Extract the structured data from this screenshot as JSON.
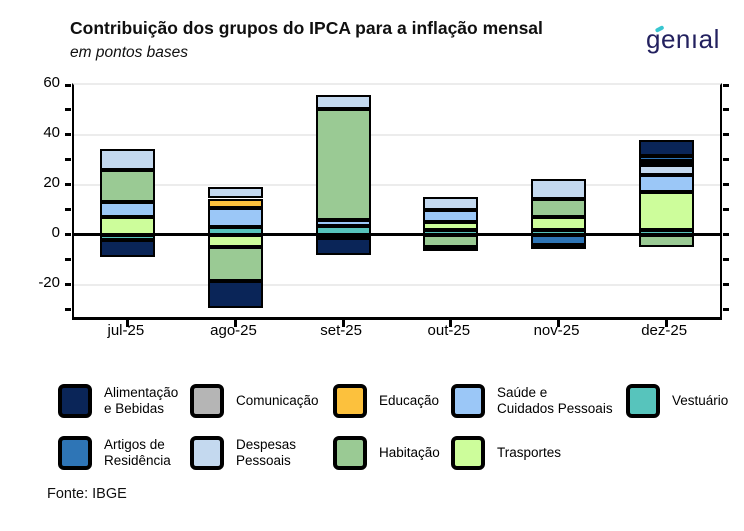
{
  "title": "Contribuição dos grupos do IPCA para a inflação mensal",
  "subtitle": "em pontos bases",
  "logo_text": "genıal",
  "source": "Fonte: IBGE",
  "chart_data": {
    "type": "bar",
    "variant": "stacked",
    "title": "Contribuição dos grupos do IPCA para a inflação mensal",
    "subtitle": "em pontos bases",
    "unit": "pontos bases",
    "categories": [
      "jul-25",
      "ago-25",
      "set-25",
      "out-25",
      "nov-25",
      "dez-25"
    ],
    "y_axis": {
      "tick_labels": [
        "60",
        "40",
        "20",
        "0",
        "-20"
      ],
      "tick_values": [
        60,
        40,
        20,
        0,
        -20
      ],
      "minor_tick_values": [
        60,
        50,
        40,
        30,
        20,
        10,
        0,
        -10,
        -20,
        -30
      ],
      "range": [
        -33,
        60
      ],
      "gridline_values": [
        40,
        20,
        -20
      ],
      "zero_line": true
    },
    "groups": [
      {
        "id": "alimentacao",
        "name": "Alimentação e Bebidas",
        "legend_label": "Alimentação\ne Bebidas",
        "color": "#0a2558"
      },
      {
        "id": "artigos",
        "name": "Artigos de Residência",
        "legend_label": "Artigos de\nResidência",
        "color": "#2e75b6"
      },
      {
        "id": "comunicacao",
        "name": "Comunicação",
        "legend_label": "Comunicação",
        "color": "#b5b5b5"
      },
      {
        "id": "despesas",
        "name": "Despesas Pessoais",
        "legend_label": "Despesas\nPessoais",
        "color": "#c4d9ef"
      },
      {
        "id": "educacao",
        "name": "Educação",
        "legend_label": "Educação",
        "color": "#fcc13d"
      },
      {
        "id": "habitacao",
        "name": "Habitação",
        "legend_label": "Habitação",
        "color": "#9aca94"
      },
      {
        "id": "saude",
        "name": "Saúde e Cuidados Pessoais",
        "legend_label": "Saúde e\nCuidados Pessoais",
        "color": "#9bc7f7"
      },
      {
        "id": "trasportes",
        "name": "Trasportes",
        "legend_label": "Trasportes",
        "color": "#cdfd9b"
      },
      {
        "id": "vestuario",
        "name": "Vestuário",
        "legend_label": "Vestuário",
        "color": "#57c4bc"
      }
    ],
    "legend_rows": [
      [
        "alimentacao",
        "comunicacao",
        "educacao",
        "saude",
        "vestuario"
      ],
      [
        "artigos",
        "despesas",
        "habitacao",
        "trasportes"
      ]
    ],
    "bars": [
      {
        "category": "jul-25",
        "segments": [
          {
            "group": "trasportes",
            "value": 7
          },
          {
            "group": "saude",
            "value": 6
          },
          {
            "group": "habitacao",
            "value": 13
          },
          {
            "group": "despesas",
            "value": 8.5
          },
          {
            "group": "vestuario",
            "value": -2
          },
          {
            "group": "alimentacao",
            "value": -7
          }
        ]
      },
      {
        "category": "ago-25",
        "segments": [
          {
            "group": "vestuario",
            "value": 3
          },
          {
            "group": "saude",
            "value": 7.5
          },
          {
            "group": "educacao",
            "value": 4
          },
          {
            "group": "despesas",
            "value": 4.5
          },
          {
            "group": "trasportes",
            "value": -5
          },
          {
            "group": "habitacao",
            "value": -13.5
          },
          {
            "group": "alimentacao",
            "value": -11
          }
        ]
      },
      {
        "category": "set-25",
        "segments": [
          {
            "group": "vestuario",
            "value": 3.5
          },
          {
            "group": "saude",
            "value": 2.5
          },
          {
            "group": "habitacao",
            "value": 44.5
          },
          {
            "group": "despesas",
            "value": 5.5
          },
          {
            "group": "artigos",
            "value": -1.5
          },
          {
            "group": "alimentacao",
            "value": -6.5
          }
        ]
      },
      {
        "category": "out-25",
        "segments": [
          {
            "group": "vestuario",
            "value": 2
          },
          {
            "group": "trasportes",
            "value": 3
          },
          {
            "group": "saude",
            "value": 5
          },
          {
            "group": "despesas",
            "value": 5
          },
          {
            "group": "habitacao",
            "value": -5
          },
          {
            "group": "alimentacao",
            "value": -1.5
          }
        ]
      },
      {
        "category": "nov-25",
        "segments": [
          {
            "group": "vestuario",
            "value": 2
          },
          {
            "group": "trasportes",
            "value": 5
          },
          {
            "group": "habitacao",
            "value": 7.5
          },
          {
            "group": "despesas",
            "value": 8
          },
          {
            "group": "artigos",
            "value": -4
          },
          {
            "group": "alimentacao",
            "value": -1.5
          }
        ]
      },
      {
        "category": "dez-25",
        "segments": [
          {
            "group": "vestuario",
            "value": 2
          },
          {
            "group": "trasportes",
            "value": 15
          },
          {
            "group": "saude",
            "value": 7
          },
          {
            "group": "despesas",
            "value": 4
          },
          {
            "group": "comunicacao",
            "value": 1.5
          },
          {
            "group": "artigos",
            "value": 2
          },
          {
            "group": "alimentacao",
            "value": 6.5
          },
          {
            "group": "habitacao",
            "value": -5
          }
        ]
      }
    ]
  }
}
